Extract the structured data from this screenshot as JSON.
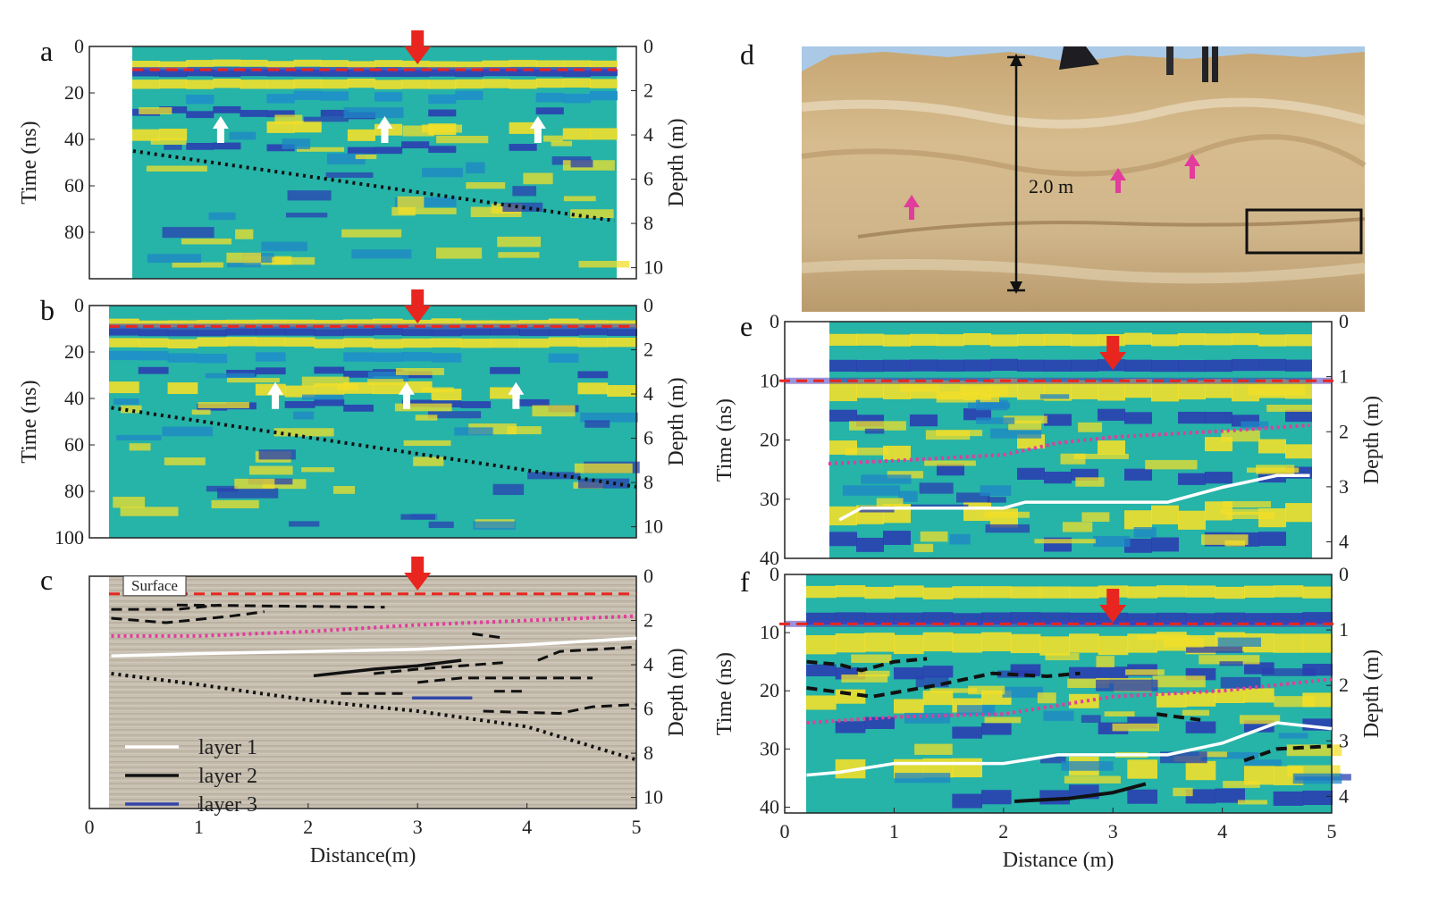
{
  "figure": {
    "panels": [
      "a",
      "b",
      "c",
      "d",
      "e",
      "f"
    ],
    "photo_label": "2.0 m",
    "surface_label": "Surface",
    "colors": {
      "radargram_base": "#26b3a8",
      "yellow_band": "#f2df2a",
      "blue_band": "#2a3fb0",
      "red_marker": "#e8261f",
      "magenta": "#e23c9c",
      "grey_section": "#c9bfae"
    }
  },
  "chart_data": [
    {
      "panel": "a",
      "type": "heatmap",
      "ylabel": "Time (ns)",
      "ylabel_right": "Depth (m)",
      "y_ticks": [
        0,
        20,
        40,
        60,
        80
      ],
      "y_right_ticks": [
        0,
        2,
        4,
        6,
        8,
        10
      ],
      "ylim": [
        0,
        100
      ],
      "xlim": [
        0,
        5
      ],
      "surface_marker_ns": 10,
      "red_arrow_x": 3,
      "white_arrows_x": [
        1.2,
        2.7,
        4.1
      ],
      "dotted_interface": [
        [
          0.4,
          45
        ],
        [
          4.8,
          75
        ]
      ]
    },
    {
      "panel": "b",
      "type": "heatmap",
      "ylabel": "Time (ns)",
      "ylabel_right": "Depth (m)",
      "y_ticks": [
        0,
        20,
        40,
        60,
        80,
        100
      ],
      "y_right_ticks": [
        0,
        2,
        4,
        6,
        8,
        10
      ],
      "ylim": [
        0,
        100
      ],
      "xlim": [
        0,
        5
      ],
      "surface_marker_ns": 9,
      "red_arrow_x": 3,
      "white_arrows_x": [
        1.7,
        2.9,
        3.9
      ],
      "dotted_interface": [
        [
          0.2,
          44
        ],
        [
          5.0,
          78
        ]
      ]
    },
    {
      "panel": "c",
      "type": "line",
      "xlabel": "Distance(m)",
      "ylabel_right": "Depth (m)",
      "x_ticks": [
        0,
        1,
        2,
        3,
        4,
        5
      ],
      "y_right_ticks": [
        0,
        2,
        4,
        6,
        8,
        10
      ],
      "xlim": [
        0,
        5
      ],
      "ylim_depth": [
        0,
        10.5
      ],
      "red_arrow_x": 3,
      "legend": [
        "layer 1",
        "layer 2",
        "layer 3"
      ],
      "series": [
        {
          "name": "layer 1",
          "color": "#ffffff",
          "points": [
            [
              0.2,
              3.6
            ],
            [
              1.0,
              3.5
            ],
            [
              2.0,
              3.4
            ],
            [
              3.0,
              3.3
            ],
            [
              4.0,
              3.1
            ],
            [
              5.0,
              2.8
            ]
          ]
        },
        {
          "name": "layer 2",
          "color": "#111111",
          "points": [
            [
              2.05,
              4.5
            ],
            [
              2.6,
              4.2
            ],
            [
              3.0,
              4.05
            ],
            [
              3.4,
              3.8
            ]
          ]
        },
        {
          "name": "layer 3",
          "color": "#3346a8",
          "points": [
            [
              2.95,
              5.5
            ],
            [
              3.5,
              5.5
            ]
          ]
        }
      ],
      "magenta_dotted": [
        [
          0.2,
          2.7
        ],
        [
          1.0,
          2.7
        ],
        [
          2.0,
          2.5
        ],
        [
          3.0,
          2.2
        ],
        [
          4.0,
          2.0
        ],
        [
          5.0,
          1.8
        ]
      ],
      "black_dotted": [
        [
          0.2,
          4.4
        ],
        [
          1.0,
          4.9
        ],
        [
          2.0,
          5.6
        ],
        [
          3.0,
          6.1
        ],
        [
          4.0,
          6.8
        ],
        [
          5.0,
          8.3
        ]
      ],
      "surface_depth": 0.8
    },
    {
      "panel": "e",
      "type": "heatmap",
      "ylabel": "Time (ns)",
      "ylabel_right": "Depth (m)",
      "y_ticks": [
        0,
        10,
        20,
        30,
        40
      ],
      "y_right_ticks": [
        0,
        1,
        2,
        3,
        4
      ],
      "ylim": [
        0,
        40
      ],
      "xlim": [
        0,
        5
      ],
      "surface_marker_ns": 10,
      "red_arrow_x": 3,
      "white_line": [
        [
          0.5,
          33.5
        ],
        [
          0.7,
          31.5
        ],
        [
          2.0,
          31.5
        ],
        [
          2.2,
          30.5
        ],
        [
          3.5,
          30.5
        ],
        [
          4.0,
          28
        ],
        [
          4.5,
          26
        ],
        [
          4.8,
          26
        ]
      ],
      "magenta_dotted": [
        [
          0.4,
          24
        ],
        [
          1.0,
          23.5
        ],
        [
          2.0,
          22.5
        ],
        [
          2.5,
          20.5
        ],
        [
          3.0,
          19.5
        ],
        [
          4.0,
          18.5
        ],
        [
          4.8,
          17.5
        ]
      ]
    },
    {
      "panel": "f",
      "type": "heatmap",
      "xlabel": "Distance (m)",
      "ylabel": "Time (ns)",
      "ylabel_right": "Depth (m)",
      "x_ticks": [
        0,
        1,
        2,
        3,
        4,
        5
      ],
      "y_ticks": [
        0,
        10,
        20,
        30,
        40
      ],
      "y_right_ticks": [
        0,
        1,
        2,
        3,
        4
      ],
      "ylim": [
        0,
        41
      ],
      "xlim": [
        0,
        5
      ],
      "surface_marker_ns": 8.5,
      "red_arrow_x": 3,
      "white_line": [
        [
          0.2,
          34.5
        ],
        [
          0.5,
          34
        ],
        [
          1.0,
          32.5
        ],
        [
          2.0,
          32.5
        ],
        [
          2.5,
          31
        ],
        [
          3.5,
          31
        ],
        [
          4.0,
          29
        ],
        [
          4.5,
          25.5
        ],
        [
          5.0,
          26.5
        ]
      ],
      "magenta_dotted": [
        [
          0.2,
          25.5
        ],
        [
          1.0,
          24.5
        ],
        [
          2.0,
          24
        ],
        [
          2.5,
          22.5
        ],
        [
          3.0,
          21
        ],
        [
          4.0,
          20
        ],
        [
          5.0,
          18
        ]
      ],
      "black_line": [
        [
          2.1,
          39
        ],
        [
          2.6,
          38.5
        ],
        [
          3.0,
          37.5
        ],
        [
          3.3,
          36
        ]
      ]
    }
  ]
}
